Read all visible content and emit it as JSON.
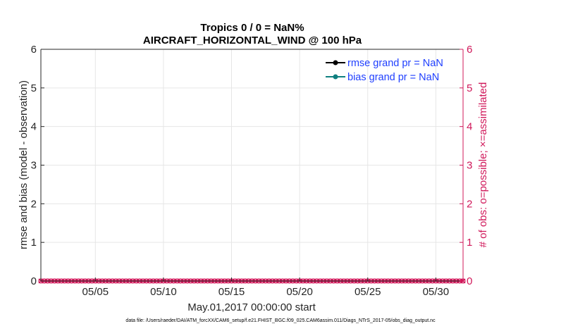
{
  "chart_data": {
    "type": "line",
    "title": "Tropics 0 / 0 = NaN%",
    "subtitle": "AIRCRAFT_HORIZONTAL_WIND @ 100 hPa",
    "xlabel": "May.01,2017 00:00:00 start",
    "ylabel": "rmse and bias (model - observation)",
    "y2label": "# of obs: o=possible; ×=assimilated",
    "x_tick_labels": [
      "05/05",
      "05/10",
      "05/15",
      "05/20",
      "05/25",
      "05/30"
    ],
    "x_tick_days": [
      5,
      10,
      15,
      20,
      25,
      30
    ],
    "xlim": [
      1,
      32
    ],
    "ylim": [
      0,
      6
    ],
    "y_ticks": [
      "0",
      "1",
      "2",
      "3",
      "4",
      "5",
      "6"
    ],
    "y2lim": [
      0,
      6
    ],
    "y2_ticks": [
      "0",
      "1",
      "2",
      "3",
      "4",
      "5",
      "6"
    ],
    "grid": true,
    "legend": {
      "placement": "top-right",
      "entries": [
        {
          "label": "rmse grand pr = NaN",
          "color": "#000000"
        },
        {
          "label": "bias grand pr = NaN",
          "color": "#0f7f7f"
        }
      ]
    },
    "series": [
      {
        "name": "rmse grand pr = NaN",
        "values": []
      },
      {
        "name": "bias grand pr = NaN",
        "values": []
      },
      {
        "name": "obs possible",
        "marker": "o",
        "color": "#d0185a",
        "x_start": 1,
        "x_end": 32,
        "x_step": 0.25,
        "value": 0
      },
      {
        "name": "obs assimilated",
        "marker": "x",
        "color": "#d0185a",
        "x_start": 1,
        "x_end": 32,
        "x_step": 0.25,
        "value": 0
      }
    ],
    "footer": "data file: /Users/raeder/DAI/ATM_forcXX/CAM6_setup/f.e21.FHIST_BGC.f09_025.CAM6assim.011/Diags_NTrS_2017-05/obs_diag_output.nc"
  },
  "colors": {
    "left_axis": "#262626",
    "right_axis": "#d0185a",
    "grid": "#e6e6e6",
    "legend_text": "#1f3fff"
  }
}
